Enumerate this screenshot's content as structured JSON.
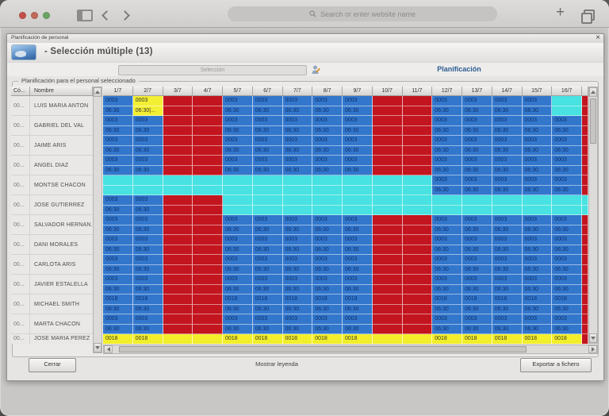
{
  "colors": {
    "work": "#3377cc",
    "off": "#c3151f",
    "free": "#47e2e1",
    "sel": "#f3ef33",
    "foot": "#f2ee2c"
  },
  "browser": {
    "search_placeholder": "Search or enter website name",
    "traffic_lights": [
      "#c2504a",
      "#bf695a",
      "#6ba365"
    ]
  },
  "window": {
    "title": "Planificación de personal",
    "close_glyph": "×",
    "toolbar": {
      "selection_title": "- Selección múltiple (13)",
      "selection_placeholder": "Selección",
      "planning_tab": "Planificación"
    },
    "groupbox_label": "Planificación para el personal seleccionado",
    "table": {
      "code_header": "Có...",
      "name_header": "Nombre",
      "days": [
        "1/7",
        "2/7",
        "3/7",
        "4/7",
        "5/7",
        "6/7",
        "7/7",
        "8/7",
        "9/7",
        "10/7",
        "11/7",
        "12/7",
        "13/7",
        "14/7",
        "15/7",
        "16/7"
      ],
      "people": [
        {
          "code": "00...",
          "name": "LUIS MARIA ANTON",
          "v1": "0003",
          "v2": "06:30",
          "sel_v2": "06:30|...",
          "cells": "b y r r b b b b b r r b b b b c",
          "sliver": "r"
        },
        {
          "code": "00...",
          "name": "GABRIEL DEL VAL",
          "v1": "0003",
          "v2": "06:30",
          "cells": "b b r r b b b b b r r b b b b b",
          "sliver": "r"
        },
        {
          "code": "00...",
          "name": "JAIME ARIS",
          "v1": "0003",
          "v2": "06:30",
          "cells": "b b r r b b b b b r r b b b b b",
          "sliver": "r"
        },
        {
          "code": "00...",
          "name": "ANGEL DIAZ",
          "v1": "0003",
          "v2": "06:30",
          "cells": "b b r r b b b b b r r b b b b b",
          "sliver": "r"
        },
        {
          "code": "00...",
          "name": "MONTSE CHACÓN",
          "v1": "0003",
          "v2": "06:30",
          "cells": "c c c c c c c c c c c b b b b b",
          "sliver": "r"
        },
        {
          "code": "00...",
          "name": "JOSE GUTIERREZ",
          "v1": "0003",
          "v2": "06:30",
          "cells": "b b r r c c c c c c c c c c c c",
          "sliver": "c"
        },
        {
          "code": "00...",
          "name": "SALVADOR HERNAN...",
          "v1": "0003",
          "v2": "06:30",
          "cells": "b b r r b b b b b r r b b b b b",
          "sliver": "r"
        },
        {
          "code": "00...",
          "name": "DANI MORALES",
          "v1": "0003",
          "v2": "06:30",
          "cells": "b b r r b b b b b r r b b b b b",
          "sliver": "r"
        },
        {
          "code": "00...",
          "name": "CARLOTA ARIS",
          "v1": "0003",
          "v2": "06:30",
          "cells": "b b r r b b b b b r r b b b b b",
          "sliver": "r"
        },
        {
          "code": "00...",
          "name": "JAVIER ESTALELLA",
          "v1": "0003",
          "v2": "06:30",
          "cells": "b b r r b b b b b r r b b b b b",
          "sliver": "r"
        },
        {
          "code": "00...",
          "name": "MICHAEL SMITH",
          "v1": "0018",
          "v2": "06:30",
          "cells": "b b r r b b b b b r r b b b b b",
          "sliver": "r"
        },
        {
          "code": "00...",
          "name": "MARTA CHACÓN",
          "v1": "0003",
          "v2": "06:30",
          "cells": "b b r r b b b b b r r b b b b b",
          "sliver": "r"
        },
        {
          "code": "00...",
          "name": "JOSE MARIA PEREZ",
          "single": true,
          "value": "0018",
          "cells": "v v . . v v v v v . . v v v v v",
          "sliver": "r"
        }
      ]
    },
    "footer": {
      "close_button": "Cerrar",
      "legend_label": "Mostrar leyenda",
      "export_button": "Exportar a fichero"
    }
  }
}
